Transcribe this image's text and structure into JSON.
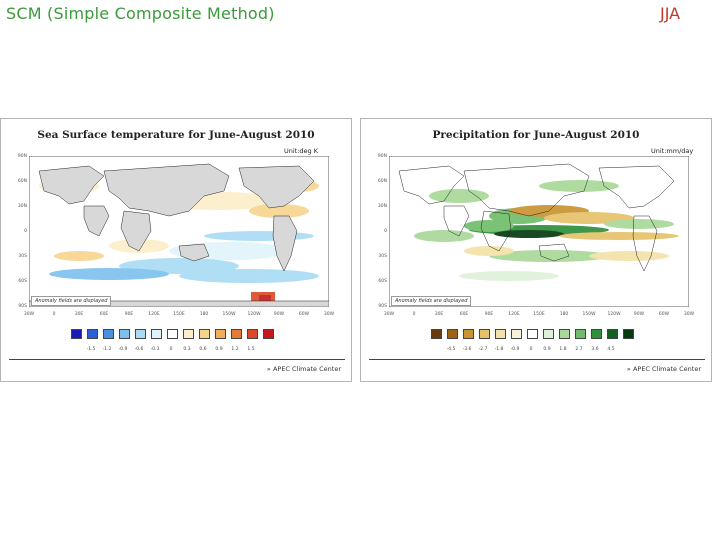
{
  "slide": {
    "title": "SCM (Simple Composite Method)",
    "tag": "JJA"
  },
  "colors": {
    "land": "#d8d8d8",
    "ocean": "#ffffff"
  },
  "panels": [
    {
      "id": "sst",
      "title": "Sea Surface temperature for June-August 2010",
      "unit": "Unit:deg K",
      "note": "Anomaly fields are displayed",
      "lat_labels": [
        "90N",
        "60N",
        "30N",
        "0",
        "30S",
        "60S",
        "90S"
      ],
      "lon_labels": [
        "30W",
        "0",
        "30E",
        "60E",
        "90E",
        "120E",
        "150E",
        "180",
        "150W",
        "120W",
        "90W",
        "60W",
        "30W"
      ],
      "colorbar": {
        "colors": [
          "#1b1bb3",
          "#2a5fd6",
          "#4a90e2",
          "#7cc0ee",
          "#a8dcf4",
          "#e0f3fa",
          "#ffffff",
          "#fbeec8",
          "#f7d48e",
          "#f2ad5a",
          "#e67a37",
          "#d94a26",
          "#c41919"
        ],
        "labels": [
          "-1.5",
          "-1.2",
          "-0.9",
          "-0.6",
          "-0.3",
          "0",
          "0.3",
          "0.6",
          "0.9",
          "1.2",
          "1.5"
        ]
      },
      "footer": "APEC Climate Center"
    },
    {
      "id": "prcp",
      "title": "Precipitation for June-August 2010",
      "unit": "Unit:mm/day",
      "note": "Anomaly fields are displayed",
      "lat_labels": [
        "90N",
        "60N",
        "30N",
        "0",
        "30S",
        "60S",
        "90S"
      ],
      "lon_labels": [
        "30W",
        "0",
        "30E",
        "60E",
        "90E",
        "120E",
        "150E",
        "180",
        "150W",
        "120W",
        "90W",
        "60W",
        "30W"
      ],
      "colorbar": {
        "colors": [
          "#6b3a0c",
          "#9c6315",
          "#c89432",
          "#e6c26a",
          "#f3e2a8",
          "#f8f3df",
          "#ffffff",
          "#dff0d8",
          "#a9d89a",
          "#6fbd6a",
          "#2f8f3a",
          "#145f22",
          "#063a12"
        ],
        "labels": [
          "-4.5",
          "-3.6",
          "-2.7",
          "-1.8",
          "-0.9",
          "0",
          "0.9",
          "1.8",
          "2.7",
          "3.6",
          "4.5"
        ]
      },
      "footer": "APEC Climate Center"
    }
  ]
}
